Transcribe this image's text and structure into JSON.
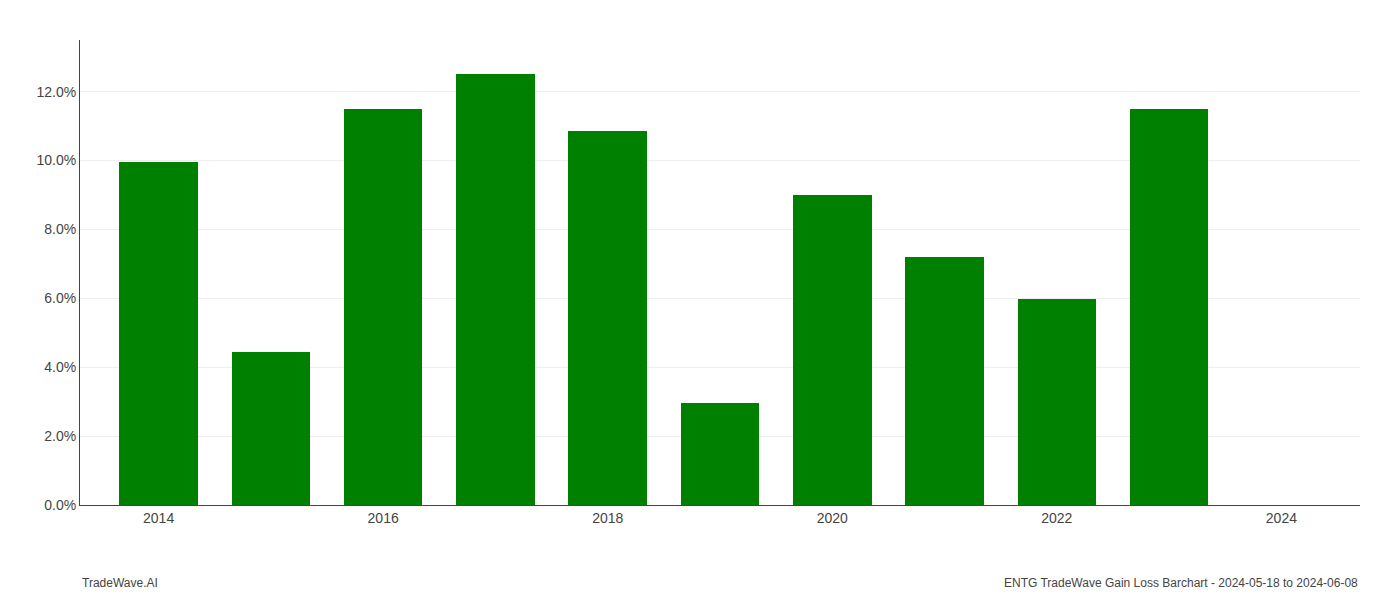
{
  "chart_data": {
    "type": "bar",
    "x": [
      2014,
      2015,
      2016,
      2017,
      2018,
      2019,
      2020,
      2021,
      2022,
      2023
    ],
    "values": [
      0.0997,
      0.0445,
      0.115,
      0.125,
      0.1085,
      0.0297,
      0.09,
      0.072,
      0.0597,
      0.115
    ],
    "color": "#008000",
    "xlim": [
      2013.3,
      2024.7
    ],
    "xticks": [
      2014,
      2016,
      2018,
      2020,
      2022,
      2024
    ],
    "ylim": [
      0,
      0.135
    ],
    "yticks": [
      {
        "value": 0,
        "label": "0.0%"
      },
      {
        "value": 0.02,
        "label": "2.0%"
      },
      {
        "value": 0.04,
        "label": "4.0%"
      },
      {
        "value": 0.06,
        "label": "6.0%"
      },
      {
        "value": 0.08,
        "label": "8.0%"
      },
      {
        "value": 0.1,
        "label": "10.0%"
      },
      {
        "value": 0.12,
        "label": "12.0%"
      }
    ],
    "grid": true,
    "annotations": [
      "TradeWave.AI",
      "ENTG TradeWave Gain Loss Barchart - 2024-05-18 to 2024-06-08"
    ]
  }
}
